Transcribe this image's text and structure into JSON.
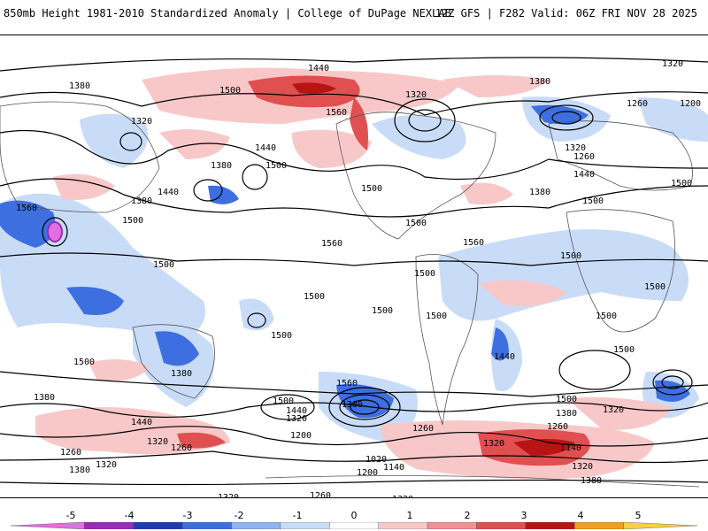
{
  "header": {
    "title": "850mb Height 1981-2010 Standardized Anomaly | College of DuPage NEXLAB",
    "run_info": "12Z GFS | F282 Valid: 06Z FRI NOV 28 2025"
  },
  "map": {
    "contour_labels": [
      "1320",
      "1380",
      "1440",
      "1500",
      "1560",
      "1200",
      "1260",
      "1140",
      "1020"
    ]
  },
  "colorbar": {
    "ticks": [
      "-5",
      "-4",
      "-3",
      "-2",
      "-1",
      "0",
      "1",
      "2",
      "3",
      "4",
      "5"
    ],
    "colors": [
      "#e070e0",
      "#9a2ab8",
      "#1f3cb0",
      "#3d6fe0",
      "#8fb4f0",
      "#c8dcf8",
      "#ffffff",
      "#f8c8c8",
      "#f09090",
      "#e05050",
      "#b81414",
      "#f0a020",
      "#f8d040"
    ]
  }
}
